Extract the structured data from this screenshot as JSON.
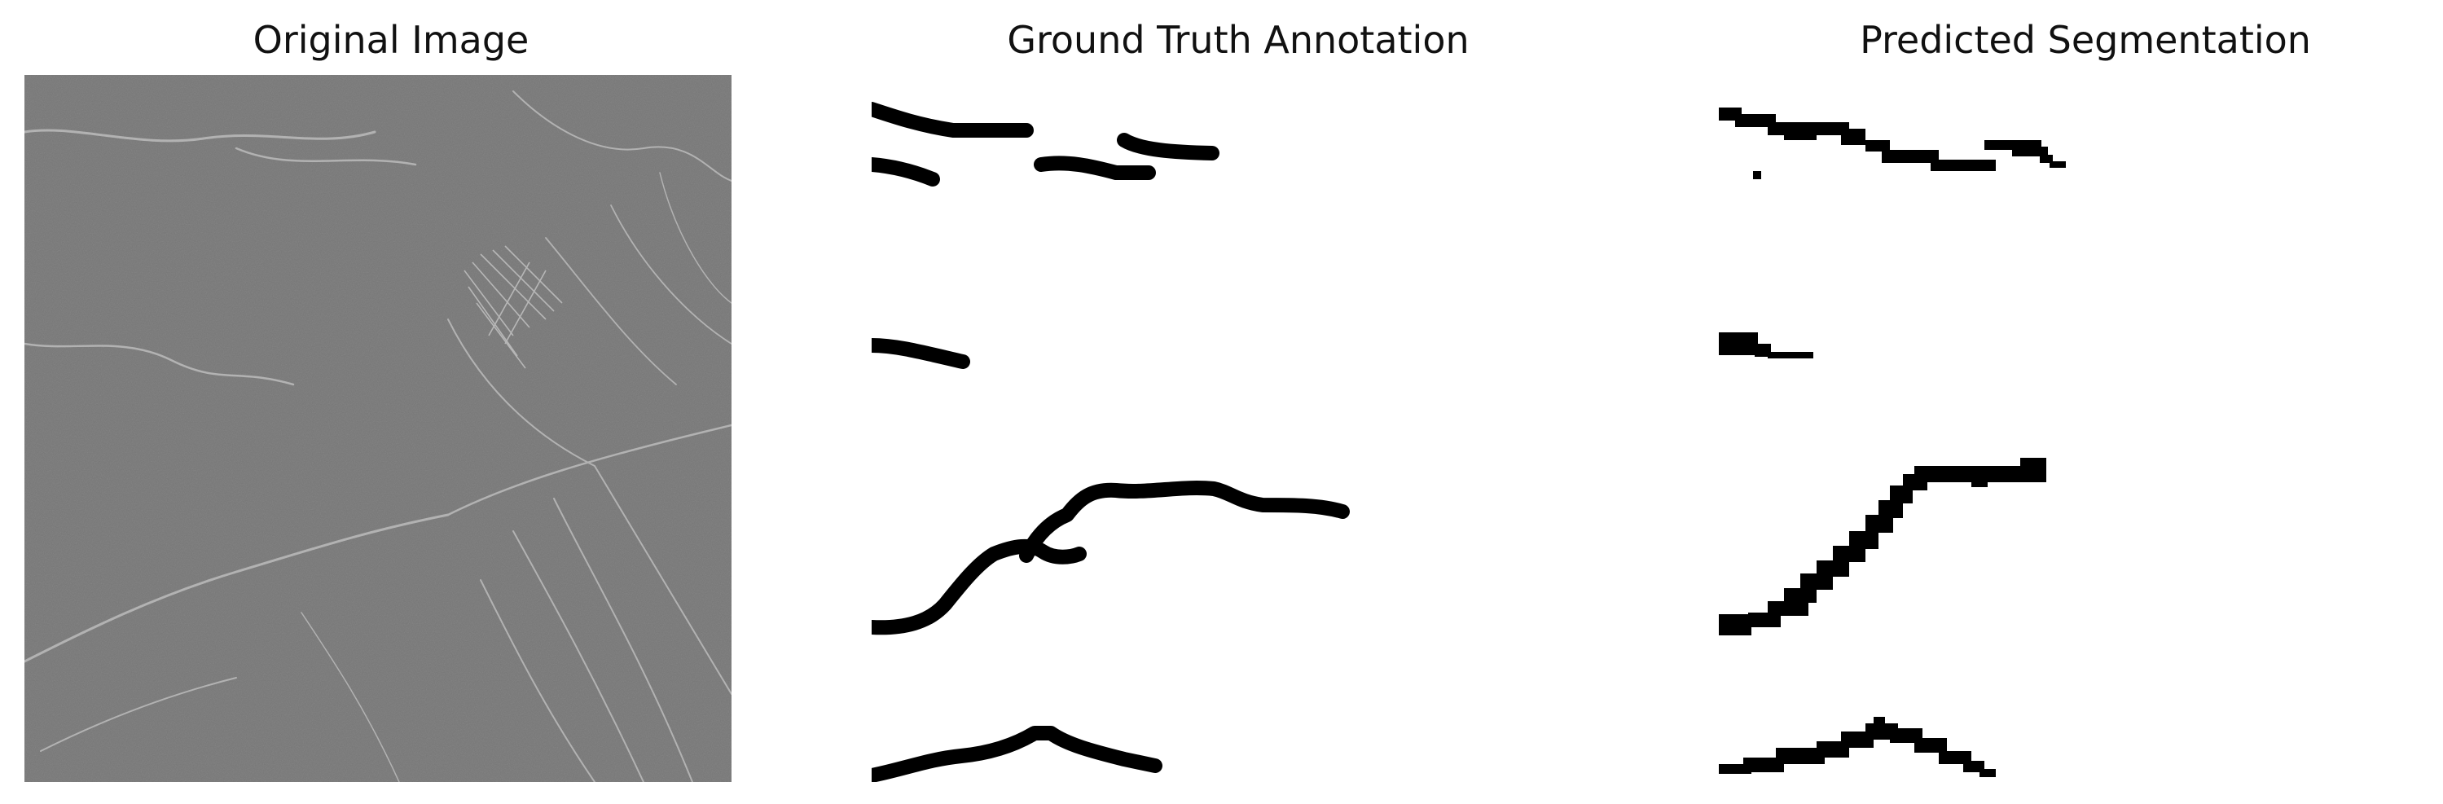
{
  "panels": [
    {
      "title": "Original Image"
    },
    {
      "title": "Ground Truth Annotation"
    },
    {
      "title": "Predicted Segmentation"
    }
  ],
  "colors": {
    "background": "#ffffff",
    "tissue_gray": "#7a7a7a",
    "nerve_fiber": "#c8c8c8",
    "mask_black": "#000000"
  }
}
